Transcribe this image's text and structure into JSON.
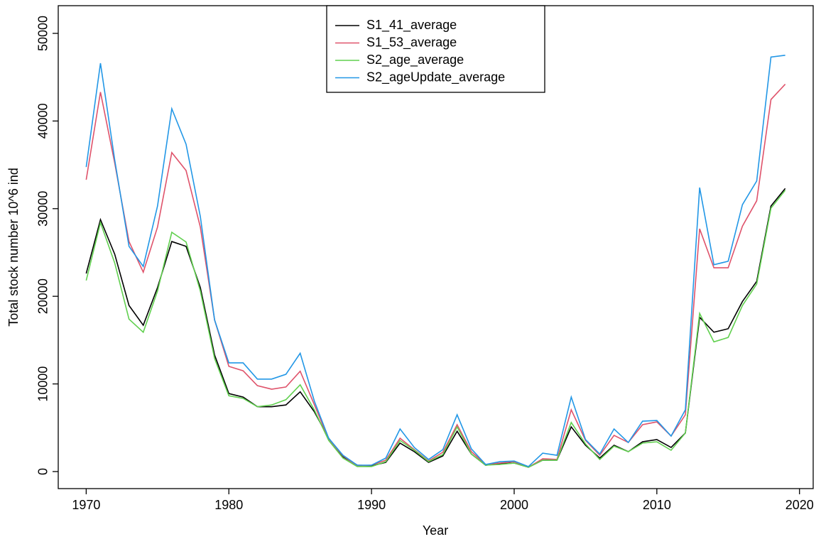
{
  "chart_data": {
    "type": "line",
    "x_label": "Year",
    "y_label": "Total stock number 10^6 ind",
    "x": [
      1970,
      1971,
      1972,
      1973,
      1974,
      1975,
      1976,
      1977,
      1978,
      1979,
      1980,
      1981,
      1982,
      1983,
      1984,
      1985,
      1986,
      1987,
      1988,
      1989,
      1990,
      1991,
      1992,
      1993,
      1994,
      1995,
      1996,
      1997,
      1998,
      1999,
      2000,
      2001,
      2002,
      2003,
      2004,
      2005,
      2006,
      2007,
      2008,
      2009,
      2010,
      2011,
      2012,
      2013,
      2014,
      2015,
      2016,
      2017,
      2018,
      2019
    ],
    "series": [
      {
        "name": "S1_41_average",
        "color": "#000000",
        "values": [
          22600,
          28750,
          24800,
          18950,
          16700,
          21000,
          26250,
          25700,
          21000,
          13300,
          8900,
          8500,
          7400,
          7400,
          7600,
          9100,
          6800,
          3800,
          1700,
          730,
          650,
          1050,
          3250,
          2270,
          1050,
          1780,
          4600,
          2000,
          730,
          900,
          970,
          490,
          1300,
          1300,
          5100,
          3000,
          1540,
          3000,
          2270,
          3400,
          3650,
          2750,
          4400,
          17600,
          15900,
          16300,
          19400,
          21700,
          30300,
          32300
        ]
      },
      {
        "name": "S1_53_average",
        "color": "#DF536B",
        "values": [
          33300,
          43300,
          35200,
          26250,
          22750,
          27900,
          36400,
          34350,
          27900,
          17300,
          12000,
          11500,
          9800,
          9400,
          9650,
          11450,
          7600,
          3700,
          1800,
          650,
          730,
          1300,
          3800,
          2500,
          1200,
          2200,
          5350,
          2270,
          810,
          970,
          1130,
          490,
          1460,
          1380,
          7050,
          3560,
          1860,
          4130,
          3320,
          5350,
          5670,
          4050,
          6480,
          27700,
          23250,
          23250,
          28000,
          30900,
          42450,
          44200
        ]
      },
      {
        "name": "S2_age_average",
        "color": "#61D04F",
        "values": [
          21800,
          28400,
          23800,
          17400,
          15900,
          20600,
          27300,
          26200,
          20600,
          12900,
          8650,
          8350,
          7400,
          7600,
          8200,
          9900,
          7000,
          3550,
          1540,
          570,
          570,
          1130,
          3550,
          2430,
          1130,
          1940,
          5100,
          2000,
          730,
          810,
          970,
          490,
          1300,
          1300,
          5600,
          3150,
          1380,
          2900,
          2270,
          3250,
          3400,
          2430,
          4400,
          18050,
          14800,
          15300,
          18950,
          21400,
          30050,
          32100
        ]
      },
      {
        "name": "S2_ageUpdate_average",
        "color": "#2297E6",
        "values": [
          34750,
          46600,
          35550,
          25700,
          23400,
          30300,
          41400,
          37350,
          29100,
          17300,
          12400,
          12400,
          10550,
          10550,
          11100,
          13500,
          8000,
          3800,
          1860,
          730,
          730,
          1540,
          4860,
          2750,
          1380,
          2500,
          6480,
          2590,
          810,
          1130,
          1200,
          570,
          2100,
          1860,
          8500,
          3650,
          2000,
          4860,
          3320,
          5750,
          5830,
          4050,
          7050,
          32400,
          23600,
          24000,
          30450,
          33150,
          47300,
          47500
        ]
      }
    ],
    "xlim": [
      1968.04,
      2020.96
    ],
    "xticks": [
      1970,
      1980,
      1990,
      2000,
      2010,
      2020
    ],
    "ylim": [
      -1945,
      53160
    ],
    "yticks": [
      0,
      10000,
      20000,
      30000,
      40000,
      50000
    ],
    "legend": "top"
  }
}
